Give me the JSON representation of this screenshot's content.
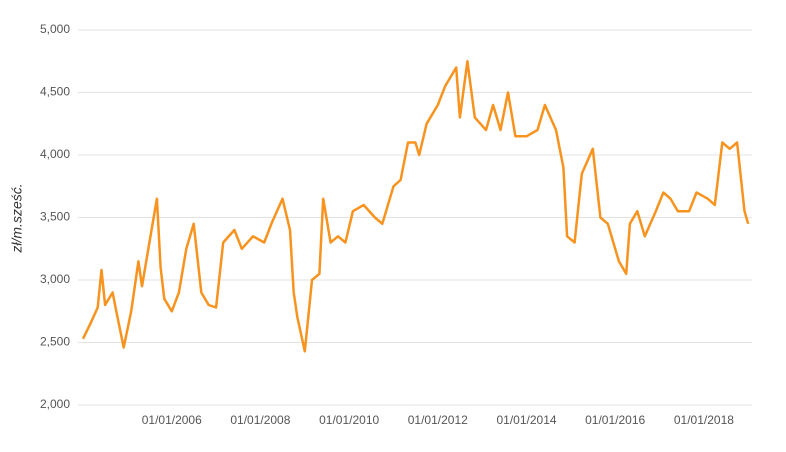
{
  "chart_data": {
    "type": "line",
    "y_label": "zł/m.sześć.",
    "x": [
      "01/01/2004",
      "01/03/2004",
      "01/05/2004",
      "01/06/2004",
      "01/07/2004",
      "01/09/2004",
      "01/10/2004",
      "01/12/2004",
      "01/02/2005",
      "01/04/2005",
      "01/05/2005",
      "01/07/2005",
      "01/09/2005",
      "01/10/2005",
      "01/11/2005",
      "01/01/2006",
      "01/03/2006",
      "01/05/2006",
      "01/07/2006",
      "01/09/2006",
      "01/11/2006",
      "01/01/2007",
      "01/03/2007",
      "01/06/2007",
      "01/08/2007",
      "01/11/2007",
      "01/02/2008",
      "01/04/2008",
      "01/07/2008",
      "01/09/2008",
      "01/10/2008",
      "01/11/2008",
      "01/01/2009",
      "01/03/2009",
      "01/05/2009",
      "01/06/2009",
      "01/08/2009",
      "01/10/2009",
      "01/12/2009",
      "01/02/2010",
      "01/05/2010",
      "01/08/2010",
      "01/10/2010",
      "01/01/2011",
      "01/03/2011",
      "01/05/2011",
      "01/07/2011",
      "01/08/2011",
      "01/10/2011",
      "01/01/2012",
      "01/03/2012",
      "01/06/2012",
      "01/07/2012",
      "01/09/2012",
      "01/11/2012",
      "01/02/2013",
      "01/04/2013",
      "01/06/2013",
      "01/08/2013",
      "01/10/2013",
      "01/01/2014",
      "01/04/2014",
      "01/06/2014",
      "01/09/2014",
      "01/11/2014",
      "01/12/2014",
      "01/02/2015",
      "01/04/2015",
      "01/07/2015",
      "01/09/2015",
      "01/11/2015",
      "01/02/2016",
      "01/04/2016",
      "01/05/2016",
      "01/07/2016",
      "01/09/2016",
      "01/12/2016",
      "01/02/2017",
      "01/04/2017",
      "01/06/2017",
      "01/09/2017",
      "01/11/2017",
      "01/02/2018",
      "01/04/2018",
      "01/06/2018",
      "01/08/2018",
      "01/10/2018",
      "01/12/2018",
      "01/01/2019"
    ],
    "series": [
      {
        "color": "#f7931e",
        "values": [
          2530,
          2650,
          2780,
          3080,
          2800,
          2900,
          2750,
          2460,
          2750,
          3150,
          2950,
          3300,
          3650,
          3100,
          2850,
          2750,
          2900,
          3250,
          3450,
          2900,
          2800,
          2780,
          3300,
          3400,
          3250,
          3350,
          3300,
          3450,
          3650,
          3400,
          2900,
          2700,
          2430,
          3000,
          3050,
          3650,
          3300,
          3350,
          3300,
          3550,
          3600,
          3500,
          3450,
          3750,
          3800,
          4100,
          4100,
          4000,
          4250,
          4400,
          4550,
          4700,
          4300,
          4750,
          4300,
          4200,
          4400,
          4200,
          4500,
          4150,
          4150,
          4200,
          4400,
          4200,
          3900,
          3350,
          3300,
          3850,
          4050,
          3500,
          3450,
          3150,
          3050,
          3450,
          3550,
          3350,
          3550,
          3700,
          3650,
          3550,
          3550,
          3700,
          3650,
          3600,
          4100,
          4050,
          4100,
          3550,
          3450
        ]
      }
    ],
    "xlim": [
      "01/01/2004",
      "01/02/2019"
    ],
    "xticks": [
      "01/01/2006",
      "01/01/2008",
      "01/01/2010",
      "01/01/2012",
      "01/01/2014",
      "01/01/2016",
      "01/01/2018"
    ],
    "ylim": [
      2000,
      5000
    ],
    "yticks": [
      {
        "value": 2000,
        "label": "2,000"
      },
      {
        "value": 2500,
        "label": "2,500"
      },
      {
        "value": 3000,
        "label": "3,000"
      },
      {
        "value": 3500,
        "label": "3,500"
      },
      {
        "value": 4000,
        "label": "4,000"
      },
      {
        "value": 4500,
        "label": "4,500"
      },
      {
        "value": 5000,
        "label": "5,000"
      }
    ],
    "grid": true
  }
}
